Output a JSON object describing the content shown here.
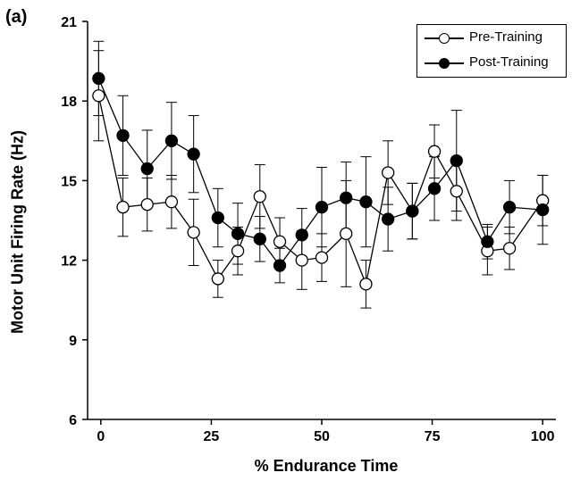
{
  "panel_label": "(a)",
  "chart_data": {
    "type": "line",
    "xlabel": "% Endurance Time",
    "ylabel": "Motor Unit Firing Rate (Hz)",
    "xlim": [
      -3,
      103
    ],
    "ylim": [
      6,
      21
    ],
    "x_ticks": [
      "0",
      "25",
      "50",
      "75",
      "100"
    ],
    "y_ticks": [
      "6",
      "9",
      "12",
      "15",
      "18",
      "21"
    ],
    "legend_position": "top-right",
    "grid": false,
    "series": [
      {
        "name": "Pre-Training",
        "marker": "open-circle",
        "color": "#000000",
        "fill": "#ffffff",
        "x": [
          -0.5,
          5,
          10.5,
          16,
          21,
          26.5,
          31,
          36,
          40.5,
          45.5,
          50,
          55.5,
          60,
          65,
          70.5,
          75.5,
          80.5,
          87.5,
          92.5,
          100
        ],
        "y": [
          18.2,
          14.0,
          14.1,
          14.2,
          13.05,
          11.3,
          12.35,
          14.4,
          12.7,
          12.0,
          12.1,
          13.0,
          11.1,
          15.3,
          13.85,
          16.1,
          14.6,
          12.35,
          12.45,
          14.25
        ],
        "err": [
          1.7,
          1.1,
          1.0,
          1.0,
          1.25,
          0.7,
          0.9,
          1.2,
          0.9,
          1.1,
          0.9,
          2.0,
          0.9,
          1.2,
          1.05,
          1.0,
          1.1,
          0.9,
          0.8,
          0.95
        ]
      },
      {
        "name": "Post-Training",
        "marker": "filled-circle",
        "color": "#000000",
        "fill": "#000000",
        "x": [
          -0.5,
          5,
          10.5,
          16,
          21,
          26.5,
          31,
          36,
          40.5,
          45.5,
          50,
          55.5,
          60,
          65,
          70.5,
          75.5,
          80.5,
          87.5,
          92.5,
          100
        ],
        "y": [
          18.85,
          16.7,
          15.45,
          16.5,
          16.0,
          13.6,
          13.0,
          12.8,
          11.8,
          12.95,
          14.0,
          14.35,
          14.2,
          13.55,
          13.85,
          14.7,
          15.75,
          12.7,
          14.0,
          13.9
        ],
        "err": [
          1.4,
          1.5,
          1.45,
          1.45,
          1.45,
          1.1,
          1.15,
          0.85,
          0.65,
          1.0,
          1.5,
          1.35,
          1.7,
          1.2,
          1.05,
          1.2,
          1.9,
          0.65,
          1.0,
          1.3
        ]
      }
    ]
  }
}
